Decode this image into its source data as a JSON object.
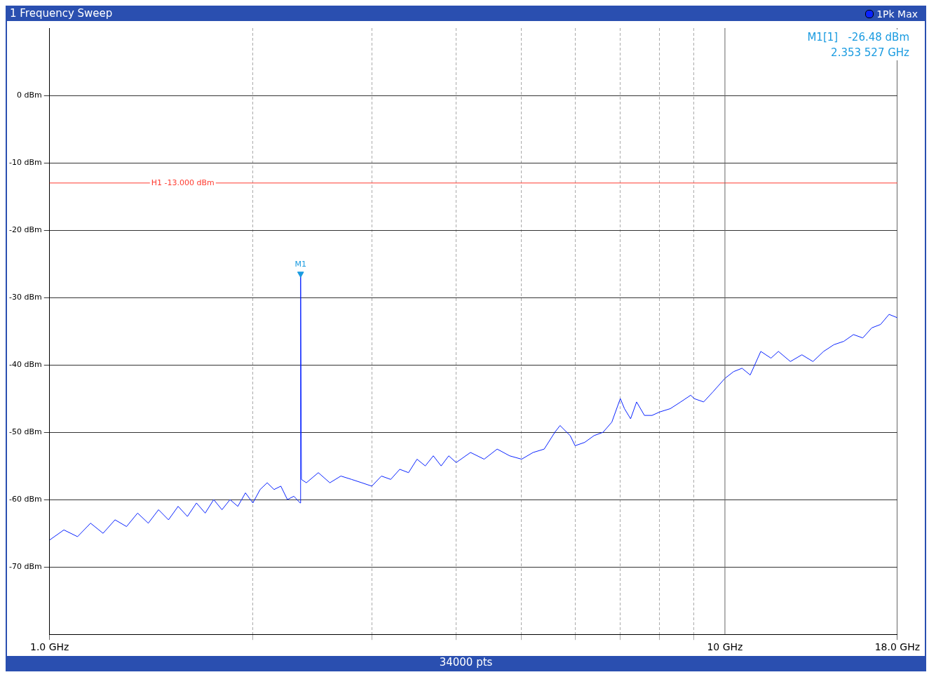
{
  "chart_data": {
    "type": "line",
    "title": "1 Frequency Sweep",
    "log": "x",
    "grid": true,
    "legend": "top right",
    "marker": "none",
    "line_style": "solid",
    "xlim": [
      1,
      18
    ],
    "xticks": [
      {
        "value": 1,
        "label": "1.0 GHz"
      },
      {
        "value": 2,
        "label": null
      },
      {
        "value": 3,
        "label": null
      },
      {
        "value": 4,
        "label": null
      },
      {
        "value": 5,
        "label": null
      },
      {
        "value": 6,
        "label": null
      },
      {
        "value": 7,
        "label": null
      },
      {
        "value": 8,
        "label": null
      },
      {
        "value": 9,
        "label": null
      },
      {
        "value": 10,
        "label": "10 GHz"
      },
      {
        "value": 18,
        "label": "18.0 GHz"
      }
    ],
    "ylim": [
      -80,
      10
    ],
    "yticks": [
      {
        "value": 0,
        "label": "0 dBm"
      },
      {
        "value": -10,
        "label": "-10 dBm"
      },
      {
        "value": -20,
        "label": "-20 dBm"
      },
      {
        "value": -30,
        "label": "-30 dBm"
      },
      {
        "value": -40,
        "label": "-40 dBm"
      },
      {
        "value": -50,
        "label": "-50 dBm"
      },
      {
        "value": -60,
        "label": "-60 dBm"
      },
      {
        "value": -70,
        "label": "-70 dBm"
      }
    ],
    "ref_lines": [
      {
        "axis": "y",
        "value": -13,
        "label": "H1 -13.000 dBm",
        "color": "#ff3b30"
      },
      {
        "axis": "x",
        "value": 10,
        "color": "#666666"
      }
    ],
    "annotations": [
      "M1[1]   -26.48 dBm",
      "2.353 527 GHz",
      "34000 pts"
    ],
    "series": [
      {
        "name": "M1",
        "type": "scatter",
        "marker": "triangle",
        "color": "#1a9be0",
        "x": [
          2.353527
        ],
        "values": [
          -26.48
        ]
      },
      {
        "name": "1Pk Max",
        "color": "#0a24ff",
        "x": [
          1.0,
          1.05,
          1.1,
          1.15,
          1.2,
          1.25,
          1.3,
          1.35,
          1.4,
          1.45,
          1.5,
          1.55,
          1.6,
          1.65,
          1.7,
          1.75,
          1.8,
          1.85,
          1.9,
          1.95,
          2.0,
          2.05,
          2.1,
          2.15,
          2.2,
          2.25,
          2.3,
          2.35,
          2.3535,
          2.36,
          2.4,
          2.5,
          2.6,
          2.7,
          2.8,
          2.9,
          3.0,
          3.1,
          3.2,
          3.3,
          3.4,
          3.5,
          3.6,
          3.7,
          3.8,
          3.9,
          4.0,
          4.2,
          4.4,
          4.6,
          4.8,
          5.0,
          5.2,
          5.4,
          5.6,
          5.7,
          5.9,
          6.0,
          6.2,
          6.4,
          6.6,
          6.8,
          7.0,
          7.1,
          7.25,
          7.4,
          7.6,
          7.8,
          8.0,
          8.3,
          8.6,
          8.9,
          9.0,
          9.3,
          9.6,
          10,
          10.3,
          10.6,
          10.9,
          11.3,
          11.7,
          12,
          12.5,
          13,
          13.5,
          14,
          14.5,
          15,
          15.5,
          16,
          16.5,
          17,
          17.5,
          18
        ],
        "values": [
          -66,
          -64.5,
          -65.5,
          -63.5,
          -65,
          -63,
          -64,
          -62,
          -63.5,
          -61.5,
          -63,
          -61,
          -62.5,
          -60.5,
          -62,
          -60,
          -61.5,
          -60,
          -61,
          -59,
          -60.5,
          -58.5,
          -57.5,
          -58.5,
          -58,
          -60,
          -59.5,
          -60.5,
          -26.48,
          -57,
          -57.5,
          -56,
          -57.5,
          -56.5,
          -57,
          -57.5,
          -58,
          -56.5,
          -57,
          -55.5,
          -56,
          -54,
          -55,
          -53.5,
          -55,
          -53.5,
          -54.5,
          -53,
          -54,
          -52.5,
          -53.5,
          -54,
          -53,
          -52.5,
          -50,
          -49,
          -50.5,
          -52,
          -51.5,
          -50.5,
          -50,
          -48.5,
          -45,
          -46.5,
          -48,
          -45.5,
          -47.5,
          -47.5,
          -47,
          -46.5,
          -45.5,
          -44.5,
          -45,
          -45.5,
          -44,
          -42,
          -41,
          -40.5,
          -41.5,
          -38,
          -39,
          -38,
          -39.5,
          -38.5,
          -39.5,
          -38,
          -37,
          -36.5,
          -35.5,
          -36,
          -34.5,
          -34,
          -32.5,
          -33
        ]
      }
    ]
  }
}
